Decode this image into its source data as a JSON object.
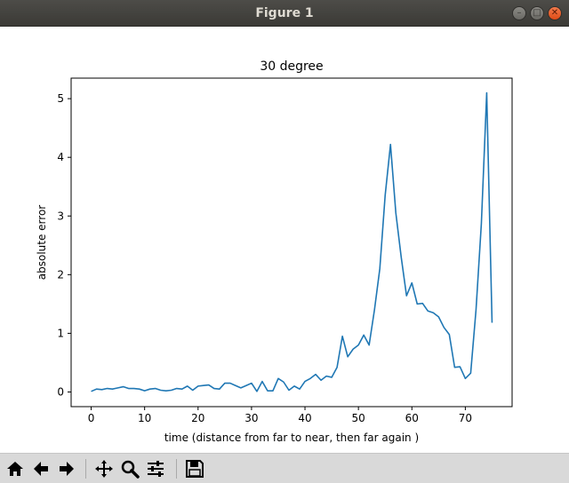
{
  "window": {
    "title": "Figure 1"
  },
  "window_buttons": [
    "minimize-icon",
    "maximize-icon",
    "close-icon"
  ],
  "toolbar": {
    "buttons": [
      {
        "name": "home-icon"
      },
      {
        "name": "back-arrow-icon"
      },
      {
        "name": "forward-arrow-icon"
      },
      {
        "name": "pan-icon"
      },
      {
        "name": "zoom-icon"
      },
      {
        "name": "configure-subplots-icon"
      },
      {
        "name": "save-icon"
      }
    ]
  },
  "colors": {
    "line": "#1f77b4",
    "titlebar": "#3e3d39",
    "toolbar": "#d9d9d9"
  },
  "chart_data": {
    "type": "line",
    "title": "30 degree",
    "xlabel": "time (distance from far to near, then far again )",
    "ylabel": "absolute error",
    "xlim": [
      -3.75,
      78.75
    ],
    "ylim": [
      -0.25,
      5.35
    ],
    "xticks": [
      0,
      10,
      20,
      30,
      40,
      50,
      60,
      70
    ],
    "yticks": [
      0,
      1,
      2,
      3,
      4,
      5
    ],
    "grid": false,
    "series": [
      {
        "x": [
          0,
          1,
          2,
          3,
          4,
          5,
          6,
          7,
          8,
          9,
          10,
          11,
          12,
          13,
          14,
          15,
          16,
          17,
          18,
          19,
          20,
          21,
          22,
          23,
          24,
          25,
          26,
          27,
          28,
          29,
          30,
          31,
          32,
          33,
          34,
          35,
          36,
          37,
          38,
          39,
          40,
          41,
          42,
          43,
          44,
          45,
          46,
          47,
          48,
          49,
          50,
          51,
          52,
          53,
          54,
          55,
          56,
          57,
          58,
          59,
          60,
          61,
          62,
          63,
          64,
          65,
          66,
          67,
          68,
          69,
          70,
          71,
          72,
          73,
          74,
          75
        ],
        "y": [
          0.01,
          0.05,
          0.04,
          0.06,
          0.05,
          0.07,
          0.09,
          0.06,
          0.06,
          0.05,
          0.02,
          0.05,
          0.06,
          0.03,
          0.02,
          0.03,
          0.06,
          0.05,
          0.1,
          0.03,
          0.1,
          0.11,
          0.12,
          0.06,
          0.05,
          0.15,
          0.15,
          0.11,
          0.07,
          0.11,
          0.15,
          0.01,
          0.18,
          0.02,
          0.02,
          0.23,
          0.17,
          0.03,
          0.1,
          0.05,
          0.18,
          0.23,
          0.3,
          0.2,
          0.27,
          0.25,
          0.42,
          0.95,
          0.6,
          0.73,
          0.8,
          0.97,
          0.8,
          1.4,
          2.1,
          3.35,
          4.22,
          3.05,
          2.3,
          1.64,
          1.86,
          1.5,
          1.51,
          1.38,
          1.35,
          1.28,
          1.1,
          0.98,
          0.42,
          0.43,
          0.23,
          0.32,
          1.4,
          2.87,
          5.1,
          1.18
        ]
      }
    ]
  }
}
